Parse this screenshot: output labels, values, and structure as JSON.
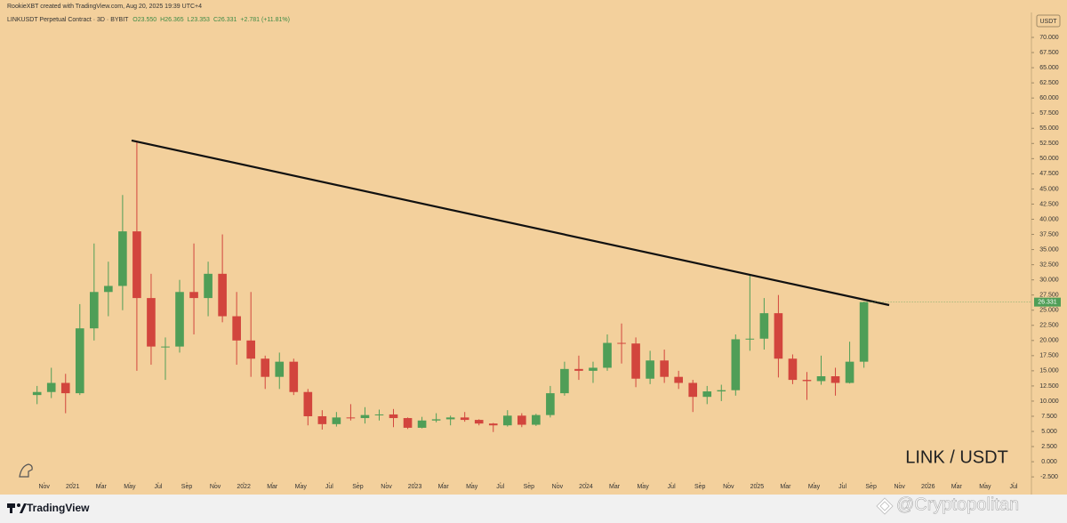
{
  "chart_data": {
    "type": "candlestick",
    "credit": "RookieXBT created with TradingView.com, Aug 20, 2025 19:39 UTC+4",
    "title": "LINKUSDT Perpetual Contract · 3D · BYBIT",
    "ohlc": [
      "O23.550",
      "H26.365",
      "L23.353",
      "C26.331",
      "+2.781 (+11.81%)"
    ],
    "y_unit": "USDT",
    "annotation": "LINK / USDT",
    "brand": "TradingView",
    "watermark": "@Cryptopolitan",
    "last_price": 26.331,
    "up_color": "#4f9e57",
    "down_color": "#d2453d",
    "background": "#f3d09c",
    "x": [
      0.5,
      1.5,
      2.5,
      3.5,
      4.5,
      5.5,
      6.5,
      7.5,
      8.5,
      9.5,
      10.5,
      11.5,
      12.5,
      13.5,
      14.5,
      15.5,
      16.5,
      17.5,
      18.5,
      19.5,
      20.5,
      21.5,
      22.5,
      23.5,
      24.5,
      25.5,
      26.5,
      27.5,
      28.5,
      29.5,
      30.5,
      31.5,
      32.5,
      33.5,
      34.5,
      35.5,
      36.5,
      37.5,
      38.5,
      39.5,
      40.5,
      41.5,
      42.5,
      43.5,
      44.5,
      45.5,
      46.5,
      47.5,
      48.5,
      49.5,
      50.5,
      51.5,
      52.5,
      53.5,
      54.5,
      55.5,
      56.5,
      57.5,
      58.5
    ],
    "open": [
      11.0,
      11.5,
      13.0,
      11.3,
      22.0,
      28.0,
      29.0,
      38.0,
      27.0,
      19.0,
      19.0,
      28.0,
      27.0,
      31.0,
      24.0,
      20.0,
      17.0,
      14.0,
      16.5,
      11.5,
      7.5,
      6.2,
      7.3,
      7.2,
      7.7,
      7.8,
      7.2,
      5.6,
      6.8,
      7.0,
      7.3,
      6.9,
      6.3,
      6.0,
      7.6,
      6.1,
      7.7,
      11.3,
      15.3,
      15.0,
      15.5,
      19.6,
      19.5,
      13.7,
      16.7,
      14.0,
      13.0,
      10.7,
      11.6,
      11.8,
      20.2,
      20.3,
      24.5,
      17.0,
      13.5,
      13.3,
      14.1,
      13.0,
      16.5
    ],
    "high": [
      12.5,
      15.5,
      14.5,
      26.0,
      36.0,
      33.0,
      44.0,
      52.7,
      31.0,
      20.5,
      30.0,
      36.0,
      33.0,
      37.5,
      28.0,
      28.0,
      17.5,
      18.0,
      17.0,
      12.0,
      8.5,
      8.2,
      9.5,
      9.0,
      8.6,
      8.7,
      7.3,
      7.4,
      8.0,
      7.6,
      8.2,
      7.0,
      6.4,
      8.5,
      8.0,
      7.9,
      12.5,
      16.5,
      17.5,
      16.5,
      21.0,
      22.8,
      20.5,
      18.3,
      18.5,
      15.0,
      13.5,
      12.5,
      12.7,
      21.0,
      30.9,
      27.0,
      27.5,
      17.7,
      14.8,
      17.5,
      15.5,
      19.8,
      26.4
    ],
    "low": [
      9.5,
      10.5,
      8.0,
      11.0,
      20.0,
      24.0,
      25.0,
      15.0,
      16.0,
      13.5,
      18.0,
      21.0,
      24.0,
      23.0,
      16.0,
      14.0,
      12.0,
      12.0,
      11.0,
      6.0,
      5.3,
      5.8,
      6.8,
      6.3,
      6.8,
      5.7,
      5.4,
      5.5,
      6.5,
      6.0,
      6.6,
      6.0,
      4.9,
      5.8,
      5.7,
      5.9,
      7.3,
      10.9,
      13.5,
      13.0,
      15.0,
      16.2,
      12.3,
      12.8,
      13.0,
      12.0,
      8.2,
      9.5,
      10.0,
      10.9,
      18.3,
      18.5,
      13.9,
      12.8,
      10.2,
      12.7,
      10.9,
      12.9,
      15.5
    ],
    "close": [
      11.5,
      13.0,
      11.3,
      22.0,
      28.0,
      29.0,
      38.0,
      27.0,
      19.0,
      19.0,
      28.0,
      27.0,
      31.0,
      24.0,
      20.0,
      17.0,
      14.0,
      16.5,
      11.5,
      7.5,
      6.2,
      7.3,
      7.2,
      7.7,
      7.8,
      7.2,
      5.6,
      6.8,
      7.0,
      7.3,
      6.9,
      6.3,
      6.0,
      7.6,
      6.1,
      7.7,
      11.3,
      15.3,
      15.0,
      15.5,
      19.6,
      19.5,
      13.7,
      16.7,
      14.0,
      13.0,
      10.7,
      11.6,
      11.8,
      20.2,
      20.3,
      24.5,
      17.0,
      13.5,
      13.3,
      14.1,
      13.0,
      16.5,
      26.331
    ],
    "trendline": {
      "x": [
        7.13,
        60.27
      ],
      "y": [
        53.0,
        25.84
      ],
      "color": "#111111"
    },
    "xlim": [
      -2.1,
      70.25
    ],
    "xticks": [
      {
        "value": 1,
        "label": "Nov"
      },
      {
        "value": 3,
        "label": "2021"
      },
      {
        "value": 5,
        "label": "Mar"
      },
      {
        "value": 7,
        "label": "May"
      },
      {
        "value": 9,
        "label": "Jul"
      },
      {
        "value": 11,
        "label": "Sep"
      },
      {
        "value": 13,
        "label": "Nov"
      },
      {
        "value": 15,
        "label": "2022"
      },
      {
        "value": 17,
        "label": "Mar"
      },
      {
        "value": 19,
        "label": "May"
      },
      {
        "value": 21,
        "label": "Jul"
      },
      {
        "value": 23,
        "label": "Sep"
      },
      {
        "value": 25,
        "label": "Nov"
      },
      {
        "value": 27,
        "label": "2023"
      },
      {
        "value": 29,
        "label": "Mar"
      },
      {
        "value": 31,
        "label": "May"
      },
      {
        "value": 33,
        "label": "Jul"
      },
      {
        "value": 35,
        "label": "Sep"
      },
      {
        "value": 37,
        "label": "Nov"
      },
      {
        "value": 39,
        "label": "2024"
      },
      {
        "value": 41,
        "label": "Mar"
      },
      {
        "value": 43,
        "label": "May"
      },
      {
        "value": 45,
        "label": "Jul"
      },
      {
        "value": 47,
        "label": "Sep"
      },
      {
        "value": 49,
        "label": "Nov"
      },
      {
        "value": 51,
        "label": "2025"
      },
      {
        "value": 53,
        "label": "Mar"
      },
      {
        "value": 55,
        "label": "May"
      },
      {
        "value": 57,
        "label": "Jul"
      },
      {
        "value": 59,
        "label": "Sep"
      },
      {
        "value": 61,
        "label": "Nov"
      },
      {
        "value": 63,
        "label": "2026"
      },
      {
        "value": 65,
        "label": "Mar"
      },
      {
        "value": 67,
        "label": "May"
      },
      {
        "value": 69,
        "label": "Jul"
      }
    ],
    "ylim": [
      -3.8,
      72.5
    ],
    "yticks": [
      {
        "value": -2.5,
        "label": "-2.500"
      },
      {
        "value": 0,
        "label": "0.000"
      },
      {
        "value": 2.5,
        "label": "2.500"
      },
      {
        "value": 5,
        "label": "5.000"
      },
      {
        "value": 7.5,
        "label": "7.500"
      },
      {
        "value": 10,
        "label": "10.000"
      },
      {
        "value": 12.5,
        "label": "12.500"
      },
      {
        "value": 15,
        "label": "15.000"
      },
      {
        "value": 17.5,
        "label": "17.500"
      },
      {
        "value": 20,
        "label": "20.000"
      },
      {
        "value": 22.5,
        "label": "22.500"
      },
      {
        "value": 25,
        "label": "25.000"
      },
      {
        "value": 27.5,
        "label": "27.500"
      },
      {
        "value": 30,
        "label": "30.000"
      },
      {
        "value": 32.5,
        "label": "32.500"
      },
      {
        "value": 35,
        "label": "35.000"
      },
      {
        "value": 37.5,
        "label": "37.500"
      },
      {
        "value": 40,
        "label": "40.000"
      },
      {
        "value": 42.5,
        "label": "42.500"
      },
      {
        "value": 45,
        "label": "45.000"
      },
      {
        "value": 47.5,
        "label": "47.500"
      },
      {
        "value": 50,
        "label": "50.000"
      },
      {
        "value": 52.5,
        "label": "52.500"
      },
      {
        "value": 55,
        "label": "55.000"
      },
      {
        "value": 57.5,
        "label": "57.500"
      },
      {
        "value": 60,
        "label": "60.000"
      },
      {
        "value": 62.5,
        "label": "62.500"
      },
      {
        "value": 65,
        "label": "65.000"
      },
      {
        "value": 67.5,
        "label": "67.500"
      },
      {
        "value": 70,
        "label": "70.000"
      }
    ]
  }
}
